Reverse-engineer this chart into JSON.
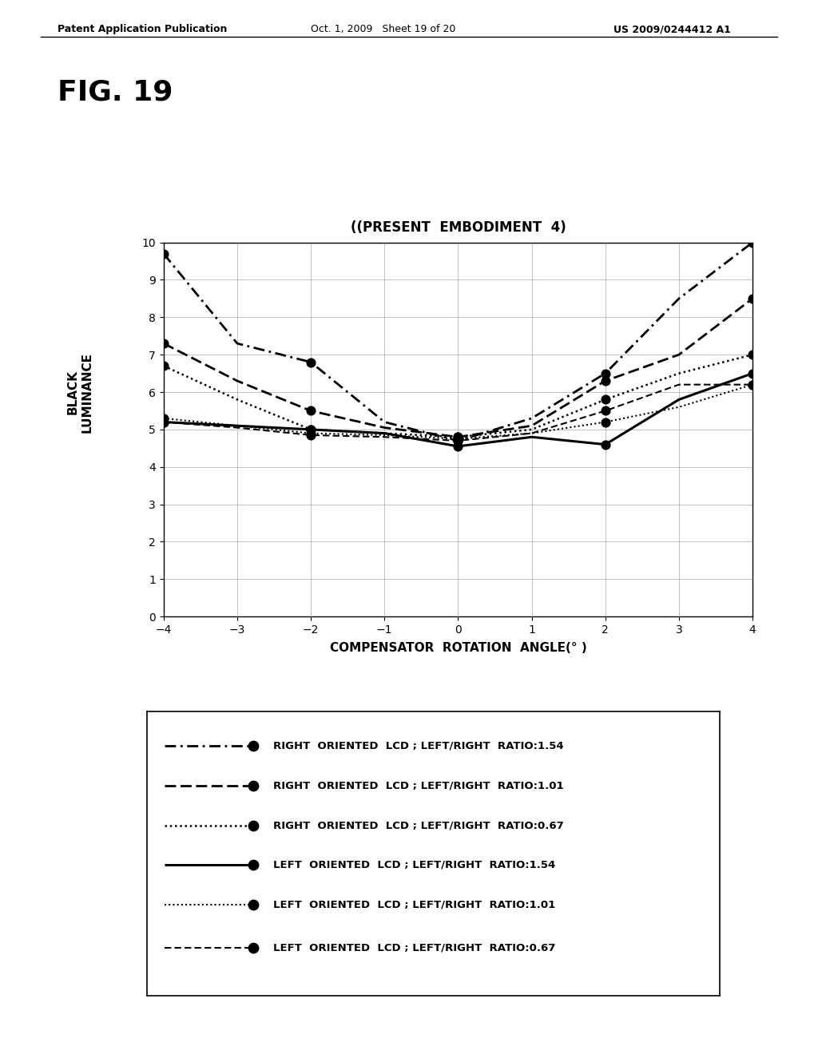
{
  "title": "((PRESENT  EMBODIMENT  4)",
  "xlabel": "COMPENSATOR  ROTATION  ANGLE(° )",
  "ylabel": "BLACK\nLUMINANCE",
  "xlim": [
    -4,
    4
  ],
  "ylim": [
    0,
    10
  ],
  "xticks": [
    -4,
    -3,
    -2,
    -1,
    0,
    1,
    2,
    3,
    4
  ],
  "yticks": [
    0,
    1,
    2,
    3,
    4,
    5,
    6,
    7,
    8,
    9,
    10
  ],
  "header_left": "Patent Application Publication",
  "header_mid": "Oct. 1, 2009   Sheet 19 of 20",
  "header_right": "US 2009/0244412 A1",
  "fig_label": "FIG. 19",
  "series": [
    {
      "label": "RIGHT  ORIENTED  LCD ; LEFT/RIGHT  RATIO:1.54",
      "x": [
        -4,
        -3,
        -2,
        -1,
        0,
        1,
        2,
        3,
        4
      ],
      "y": [
        9.7,
        7.3,
        6.8,
        5.2,
        4.7,
        5.3,
        6.5,
        8.5,
        10.0
      ],
      "marker_x": [
        -4,
        -2,
        0,
        2,
        4
      ],
      "marker_y": [
        9.7,
        6.8,
        4.7,
        6.5,
        10.0
      ]
    },
    {
      "label": "RIGHT  ORIENTED  LCD ; LEFT/RIGHT  RATIO:1.01",
      "x": [
        -4,
        -3,
        -2,
        -1,
        0,
        1,
        2,
        3,
        4
      ],
      "y": [
        7.3,
        6.3,
        5.5,
        5.05,
        4.8,
        5.1,
        6.3,
        7.0,
        8.5
      ],
      "marker_x": [
        -4,
        -2,
        0,
        2,
        4
      ],
      "marker_y": [
        7.3,
        5.5,
        4.8,
        6.3,
        8.5
      ]
    },
    {
      "label": "RIGHT  ORIENTED  LCD ; LEFT/RIGHT  RATIO:0.67",
      "x": [
        -4,
        -3,
        -2,
        -1,
        0,
        1,
        2,
        3,
        4
      ],
      "y": [
        6.7,
        5.8,
        5.0,
        4.9,
        4.8,
        5.0,
        5.8,
        6.5,
        7.0
      ],
      "marker_x": [
        -4,
        -2,
        0,
        2,
        4
      ],
      "marker_y": [
        6.7,
        5.0,
        4.8,
        5.8,
        7.0
      ]
    },
    {
      "label": "LEFT  ORIENTED  LCD ; LEFT/RIGHT  RATIO:1.54",
      "x": [
        -4,
        -3,
        -2,
        -1,
        0,
        1,
        2,
        3,
        4
      ],
      "y": [
        5.2,
        5.1,
        5.0,
        4.9,
        4.55,
        4.8,
        4.6,
        5.8,
        6.5
      ],
      "marker_x": [
        -4,
        -2,
        0,
        2,
        4
      ],
      "marker_y": [
        5.2,
        5.0,
        4.55,
        4.6,
        6.5
      ]
    },
    {
      "label": "LEFT  ORIENTED  LCD ; LEFT/RIGHT  RATIO:1.01",
      "x": [
        -4,
        -3,
        -2,
        -1,
        0,
        1,
        2,
        3,
        4
      ],
      "y": [
        5.3,
        5.1,
        4.9,
        4.85,
        4.75,
        4.9,
        5.2,
        5.6,
        6.2
      ],
      "marker_x": [
        -4,
        -2,
        0,
        2,
        4
      ],
      "marker_y": [
        5.3,
        4.9,
        4.75,
        5.2,
        6.2
      ]
    },
    {
      "label": "LEFT  ORIENTED  LCD ; LEFT/RIGHT  RATIO:0.67",
      "x": [
        -4,
        -3,
        -2,
        -1,
        0,
        1,
        2,
        3,
        4
      ],
      "y": [
        5.2,
        5.05,
        4.85,
        4.8,
        4.7,
        4.9,
        5.5,
        6.2,
        6.2
      ],
      "marker_x": [
        -4,
        -2,
        0,
        2,
        4
      ],
      "marker_y": [
        5.2,
        4.85,
        4.7,
        5.5,
        6.2
      ]
    }
  ],
  "background_color": "#ffffff",
  "line_color": "#000000"
}
